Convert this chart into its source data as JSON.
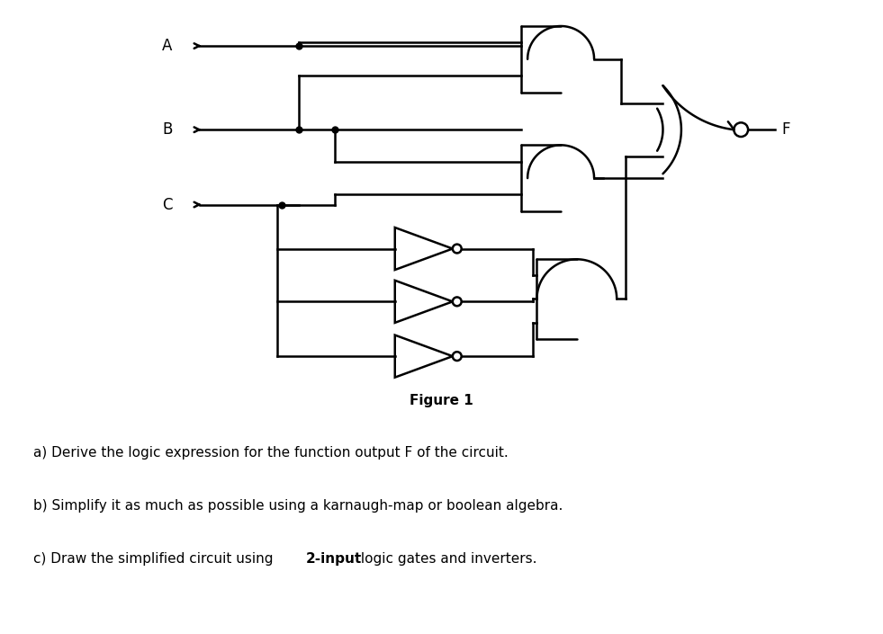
{
  "bg_color": "#ffffff",
  "line_color": "#000000",
  "line_width": 1.8,
  "title": "Figure 1",
  "title_fontsize": 11,
  "title_fontweight": "bold",
  "q_a": "a) Derive the logic expression for the function output F of the circuit.",
  "q_b": "b) Simplify it as much as possible using a karnaugh-map or boolean algebra.",
  "q_c_pre": "c) Draw the simplified circuit using ",
  "q_c_bold": "2-input",
  "q_c_post": " logic gates and inverters.",
  "label_fontsize": 12
}
